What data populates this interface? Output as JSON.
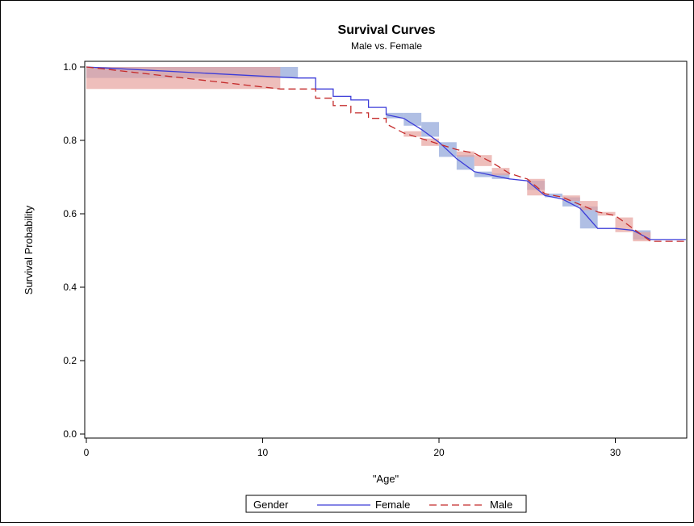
{
  "chart_data": {
    "type": "line",
    "title": "Survival Curves",
    "subtitle": "Male vs. Female",
    "xlabel": "\"Age\"",
    "ylabel": "Survival Probability",
    "xlim": [
      0,
      34
    ],
    "ylim": [
      0,
      1
    ],
    "x_ticks": [
      "0",
      "10",
      "20",
      "30"
    ],
    "y_ticks": [
      "0.0",
      "0.2",
      "0.4",
      "0.6",
      "0.8",
      "1.0"
    ],
    "grid": false,
    "legend": {
      "placement": "bottom-center",
      "title": "Gender",
      "entries": [
        "Female",
        "Male"
      ]
    },
    "series": [
      {
        "name": "Female",
        "color": "#3c3cd8",
        "dash": "solid",
        "band_color": "#8fa4d8",
        "points": [
          [
            0,
            1.0
          ],
          [
            12,
            0.97
          ],
          [
            13,
            0.97
          ],
          [
            13,
            0.94
          ],
          [
            14,
            0.94
          ],
          [
            14,
            0.92
          ],
          [
            15,
            0.92
          ],
          [
            15,
            0.91
          ],
          [
            16,
            0.91
          ],
          [
            16,
            0.89
          ],
          [
            17,
            0.89
          ],
          [
            17,
            0.87
          ],
          [
            18,
            0.86
          ],
          [
            19,
            0.83
          ],
          [
            20,
            0.795
          ],
          [
            21,
            0.75
          ],
          [
            22,
            0.715
          ],
          [
            23,
            0.705
          ],
          [
            24,
            0.695
          ],
          [
            25,
            0.69
          ],
          [
            26,
            0.65
          ],
          [
            27,
            0.64
          ],
          [
            28,
            0.615
          ],
          [
            29,
            0.56
          ],
          [
            30,
            0.56
          ],
          [
            31,
            0.555
          ],
          [
            32,
            0.53
          ],
          [
            34,
            0.53
          ]
        ],
        "bands": [
          [
            0,
            12,
            0.97,
            1.0
          ],
          [
            17,
            18,
            0.86,
            0.875
          ],
          [
            18,
            19,
            0.84,
            0.875
          ],
          [
            19,
            20,
            0.81,
            0.85
          ],
          [
            20,
            21,
            0.755,
            0.795
          ],
          [
            21,
            22,
            0.72,
            0.76
          ],
          [
            22,
            23,
            0.7,
            0.715
          ],
          [
            23,
            24,
            0.695,
            0.71
          ],
          [
            25,
            26,
            0.665,
            0.69
          ],
          [
            26,
            27,
            0.645,
            0.655
          ],
          [
            27,
            28,
            0.62,
            0.645
          ],
          [
            28,
            29,
            0.56,
            0.62
          ],
          [
            31,
            32,
            0.53,
            0.555
          ]
        ]
      },
      {
        "name": "Male",
        "color": "#c42a2a",
        "dash": "dashed",
        "band_color": "#e7a39e",
        "points": [
          [
            0,
            1.0
          ],
          [
            11,
            0.94
          ],
          [
            13,
            0.94
          ],
          [
            13,
            0.915
          ],
          [
            14,
            0.915
          ],
          [
            14,
            0.895
          ],
          [
            15,
            0.895
          ],
          [
            15,
            0.875
          ],
          [
            16,
            0.875
          ],
          [
            16,
            0.86
          ],
          [
            17,
            0.86
          ],
          [
            17,
            0.845
          ],
          [
            18,
            0.82
          ],
          [
            19,
            0.805
          ],
          [
            20,
            0.79
          ],
          [
            21,
            0.775
          ],
          [
            22,
            0.765
          ],
          [
            23,
            0.74
          ],
          [
            24,
            0.71
          ],
          [
            25,
            0.695
          ],
          [
            26,
            0.655
          ],
          [
            27,
            0.645
          ],
          [
            28,
            0.625
          ],
          [
            29,
            0.605
          ],
          [
            30,
            0.595
          ],
          [
            31,
            0.56
          ],
          [
            32,
            0.525
          ],
          [
            34,
            0.525
          ]
        ],
        "bands": [
          [
            0,
            11,
            0.94,
            1.0
          ],
          [
            18,
            19,
            0.81,
            0.825
          ],
          [
            19,
            20,
            0.785,
            0.805
          ],
          [
            21,
            22,
            0.755,
            0.77
          ],
          [
            22,
            23,
            0.73,
            0.76
          ],
          [
            23,
            24,
            0.705,
            0.725
          ],
          [
            25,
            26,
            0.65,
            0.695
          ],
          [
            27,
            28,
            0.635,
            0.65
          ],
          [
            28,
            29,
            0.61,
            0.635
          ],
          [
            29,
            30,
            0.595,
            0.605
          ],
          [
            30,
            31,
            0.55,
            0.59
          ],
          [
            31,
            32,
            0.525,
            0.55
          ]
        ]
      }
    ]
  }
}
